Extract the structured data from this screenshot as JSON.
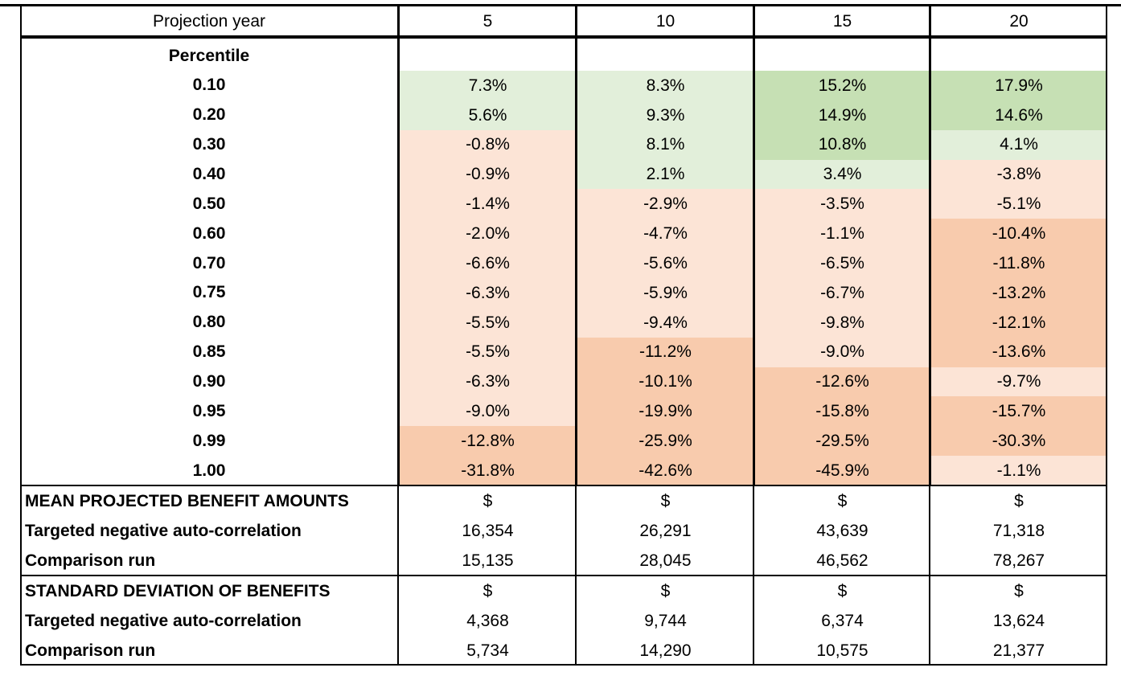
{
  "header": {
    "label": "Projection year",
    "years": [
      "5",
      "10",
      "15",
      "20"
    ]
  },
  "percentile_section": {
    "label": "Percentile",
    "rows": [
      {
        "label": "0.10",
        "cells": [
          {
            "text": "7.3%",
            "color": "#e2efda"
          },
          {
            "text": "8.3%",
            "color": "#e2efda"
          },
          {
            "text": "15.2%",
            "color": "#c6e0b4"
          },
          {
            "text": "17.9%",
            "color": "#c6e0b4"
          }
        ]
      },
      {
        "label": "0.20",
        "cells": [
          {
            "text": "5.6%",
            "color": "#e2efda"
          },
          {
            "text": "9.3%",
            "color": "#e2efda"
          },
          {
            "text": "14.9%",
            "color": "#c6e0b4"
          },
          {
            "text": "14.6%",
            "color": "#c6e0b4"
          }
        ]
      },
      {
        "label": "0.30",
        "cells": [
          {
            "text": "-0.8%",
            "color": "#fce4d6"
          },
          {
            "text": "8.1%",
            "color": "#e2efda"
          },
          {
            "text": "10.8%",
            "color": "#c6e0b4"
          },
          {
            "text": "4.1%",
            "color": "#e2efda"
          }
        ]
      },
      {
        "label": "0.40",
        "cells": [
          {
            "text": "-0.9%",
            "color": "#fce4d6"
          },
          {
            "text": "2.1%",
            "color": "#e2efda"
          },
          {
            "text": "3.4%",
            "color": "#e2efda"
          },
          {
            "text": "-3.8%",
            "color": "#fce4d6"
          }
        ]
      },
      {
        "label": "0.50",
        "cells": [
          {
            "text": "-1.4%",
            "color": "#fce4d6"
          },
          {
            "text": "-2.9%",
            "color": "#fce4d6"
          },
          {
            "text": "-3.5%",
            "color": "#fce4d6"
          },
          {
            "text": "-5.1%",
            "color": "#fce4d6"
          }
        ]
      },
      {
        "label": "0.60",
        "cells": [
          {
            "text": "-2.0%",
            "color": "#fce4d6"
          },
          {
            "text": "-4.7%",
            "color": "#fce4d6"
          },
          {
            "text": "-1.1%",
            "color": "#fce4d6"
          },
          {
            "text": "-10.4%",
            "color": "#f8cbad"
          }
        ]
      },
      {
        "label": "0.70",
        "cells": [
          {
            "text": "-6.6%",
            "color": "#fce4d6"
          },
          {
            "text": "-5.6%",
            "color": "#fce4d6"
          },
          {
            "text": "-6.5%",
            "color": "#fce4d6"
          },
          {
            "text": "-11.8%",
            "color": "#f8cbad"
          }
        ]
      },
      {
        "label": "0.75",
        "cells": [
          {
            "text": "-6.3%",
            "color": "#fce4d6"
          },
          {
            "text": "-5.9%",
            "color": "#fce4d6"
          },
          {
            "text": "-6.7%",
            "color": "#fce4d6"
          },
          {
            "text": "-13.2%",
            "color": "#f8cbad"
          }
        ]
      },
      {
        "label": "0.80",
        "cells": [
          {
            "text": "-5.5%",
            "color": "#fce4d6"
          },
          {
            "text": "-9.4%",
            "color": "#fce4d6"
          },
          {
            "text": "-9.8%",
            "color": "#fce4d6"
          },
          {
            "text": "-12.1%",
            "color": "#f8cbad"
          }
        ]
      },
      {
        "label": "0.85",
        "cells": [
          {
            "text": "-5.5%",
            "color": "#fce4d6"
          },
          {
            "text": "-11.2%",
            "color": "#f8cbad"
          },
          {
            "text": "-9.0%",
            "color": "#fce4d6"
          },
          {
            "text": "-13.6%",
            "color": "#f8cbad"
          }
        ]
      },
      {
        "label": "0.90",
        "cells": [
          {
            "text": "-6.3%",
            "color": "#fce4d6"
          },
          {
            "text": "-10.1%",
            "color": "#f8cbad"
          },
          {
            "text": "-12.6%",
            "color": "#f8cbad"
          },
          {
            "text": "-9.7%",
            "color": "#fce4d6"
          }
        ]
      },
      {
        "label": "0.95",
        "cells": [
          {
            "text": "-9.0%",
            "color": "#fce4d6"
          },
          {
            "text": "-19.9%",
            "color": "#f8cbad"
          },
          {
            "text": "-15.8%",
            "color": "#f8cbad"
          },
          {
            "text": "-15.7%",
            "color": "#f8cbad"
          }
        ]
      },
      {
        "label": "0.99",
        "cells": [
          {
            "text": "-12.8%",
            "color": "#f8cbad"
          },
          {
            "text": "-25.9%",
            "color": "#f8cbad"
          },
          {
            "text": "-29.5%",
            "color": "#f8cbad"
          },
          {
            "text": "-30.3%",
            "color": "#f8cbad"
          }
        ]
      },
      {
        "label": "1.00",
        "cells": [
          {
            "text": "-31.8%",
            "color": "#f8cbad"
          },
          {
            "text": "-42.6%",
            "color": "#f8cbad"
          },
          {
            "text": "-45.9%",
            "color": "#f8cbad"
          },
          {
            "text": "-1.1%",
            "color": "#fce4d6"
          }
        ]
      }
    ]
  },
  "sections": [
    {
      "title": "MEAN PROJECTED BENEFIT AMOUNTS",
      "units": [
        "$",
        "$",
        "$",
        "$"
      ],
      "rows": [
        {
          "label": "Targeted negative auto-correlation",
          "values": [
            "16,354",
            "26,291",
            "43,639",
            "71,318"
          ]
        },
        {
          "label": "Comparison run",
          "values": [
            "15,135",
            "28,045",
            "46,562",
            "78,267"
          ]
        }
      ]
    },
    {
      "title": "STANDARD DEVIATION OF BENEFITS",
      "units": [
        "$",
        "$",
        "$",
        "$"
      ],
      "rows": [
        {
          "label": "Targeted negative auto-correlation",
          "values": [
            "4,368",
            "9,744",
            "6,374",
            "13,624"
          ]
        },
        {
          "label": "Comparison run",
          "values": [
            "5,734",
            "14,290",
            "10,575",
            "21,377"
          ]
        }
      ]
    }
  ]
}
